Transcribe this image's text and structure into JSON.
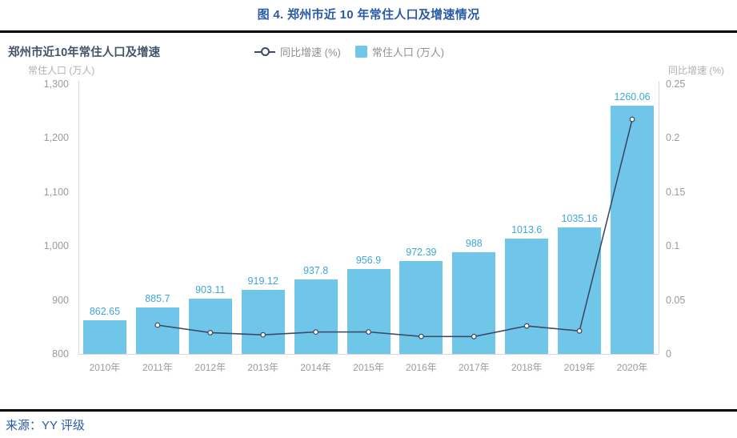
{
  "header": {
    "title": "图 4. 郑州市近 10 年常住人口及增速情况"
  },
  "footer": {
    "source": "来源：YY 评级"
  },
  "chart": {
    "title": "郑州市近10年常住人口及增速",
    "legend": {
      "growth_label": "同比增速 (%)",
      "population_label": "常住人口 (万人)"
    }
  },
  "colors": {
    "title_blue": "#2b5aa7",
    "bar_fill": "#6fc6e8",
    "bar_value_label": "#3ea6da",
    "line": "#3d4a63",
    "tick_text": "#9b9b9b",
    "axis_title_text": "#b0b0b0",
    "legend_text": "#8f8f8f",
    "divider": "#000000"
  },
  "chart_data": {
    "type": "bar",
    "subtype": "bar+line combo, dual axis",
    "title": "郑州市近10年常住人口及增速",
    "categories": [
      "2010年",
      "2011年",
      "2012年",
      "2013年",
      "2014年",
      "2015年",
      "2016年",
      "2017年",
      "2018年",
      "2019年",
      "2020年"
    ],
    "series": [
      {
        "name": "常住人口 (万人)",
        "type": "bar",
        "axis": "left",
        "values": [
          862.65,
          885.7,
          903.11,
          919.12,
          937.8,
          956.9,
          972.39,
          988,
          1013.6,
          1035.16,
          1260.06
        ],
        "labels": [
          "862.65",
          "885.7",
          "903.11",
          "919.12",
          "937.8",
          "956.9",
          "972.39",
          "988",
          "1013.6",
          "1035.16",
          "1260.06"
        ]
      },
      {
        "name": "同比增速 (%)",
        "type": "line",
        "axis": "right",
        "values": [
          null,
          0.0267,
          0.0197,
          0.0177,
          0.0203,
          0.0204,
          0.0162,
          0.0161,
          0.0259,
          0.0213,
          0.2173
        ]
      }
    ],
    "left_axis": {
      "title": "常住人口 (万人)",
      "lim": [
        800,
        1300
      ],
      "ticks": [
        {
          "v": 1300,
          "label": "1,300"
        },
        {
          "v": 1200,
          "label": "1,200"
        },
        {
          "v": 1100,
          "label": "1,100"
        },
        {
          "v": 1000,
          "label": "1,000"
        },
        {
          "v": 900,
          "label": "900"
        },
        {
          "v": 800,
          "label": "800"
        }
      ]
    },
    "right_axis": {
      "title": "同比增速 (%)",
      "lim": [
        0,
        0.25
      ],
      "ticks": [
        {
          "v": 0.25,
          "label": "0.25"
        },
        {
          "v": 0.2,
          "label": "0.2"
        },
        {
          "v": 0.15,
          "label": "0.15"
        },
        {
          "v": 0.1,
          "label": "0.1"
        },
        {
          "v": 0.05,
          "label": "0.05"
        },
        {
          "v": 0,
          "label": "0"
        }
      ]
    },
    "grid": false,
    "legend_position": "top"
  }
}
